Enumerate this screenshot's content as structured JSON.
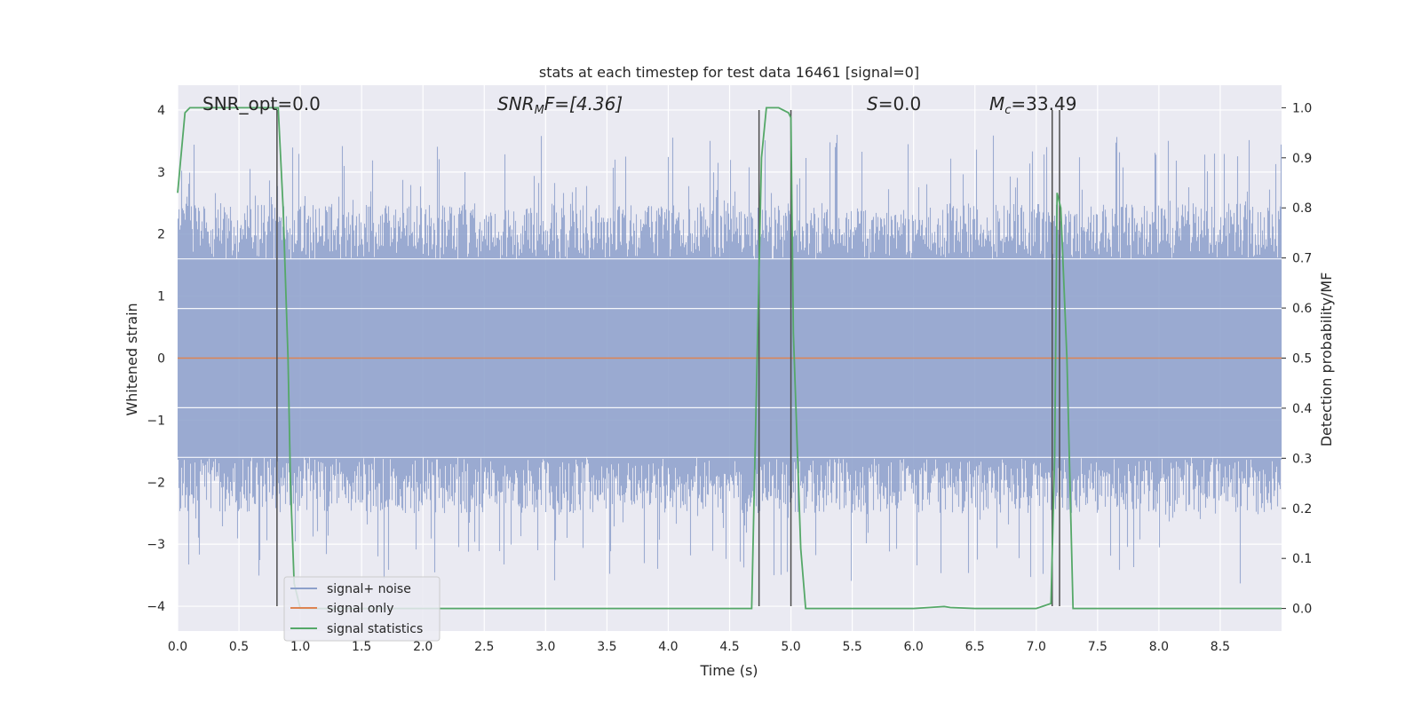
{
  "chart_data": {
    "type": "line",
    "title": "stats at each timestep for test data 16461 [signal=0]",
    "xlabel": "Time (s)",
    "ylabel": "Whitened strain",
    "ylabel_right": "Detection probability/MF",
    "xlim": [
      0.0,
      9.0
    ],
    "ylim": [
      -4.4,
      4.4
    ],
    "ylim_right": [
      -0.045,
      1.045
    ],
    "x_ticks": [
      "0.0",
      "0.5",
      "1.0",
      "1.5",
      "2.0",
      "2.5",
      "3.0",
      "3.5",
      "4.0",
      "4.5",
      "5.0",
      "5.5",
      "6.0",
      "6.5",
      "7.0",
      "7.5",
      "8.0",
      "8.5"
    ],
    "y_ticks": [
      "−4",
      "−3",
      "−2",
      "−1",
      "0",
      "1",
      "2",
      "3",
      "4"
    ],
    "y_ticks_right": [
      "0.0",
      "0.1",
      "0.2",
      "0.3",
      "0.4",
      "0.5",
      "0.6",
      "0.7",
      "0.8",
      "0.9",
      "1.0"
    ],
    "grid": true,
    "legend_position": "lower-left",
    "annotations": {
      "snr_opt": "SNR_opt=0.0",
      "snr_mf_main": "SNR",
      "snr_mf_sub": "M",
      "snr_mf_rest": "F=[4.36]",
      "s_main": "S",
      "s_rest": "=0.0",
      "mc_main": "M",
      "mc_sub": "c",
      "mc_rest": "=33.49"
    },
    "series": [
      {
        "name": "signal+ noise",
        "color": "#8da0cb",
        "description_stats": {
          "core_band": [
            -1.6,
            1.6
          ],
          "peaks_max": 3.6,
          "peaks_min": -4.0
        }
      },
      {
        "name": "signal only",
        "color": "#dd8452",
        "x": [
          0.0,
          9.0
        ],
        "y": [
          0.0,
          0.0
        ]
      },
      {
        "name": "signal statistics",
        "color": "#55a868",
        "axis": "right",
        "x": [
          0.0,
          0.06,
          0.1,
          0.2,
          0.3,
          0.4,
          0.5,
          0.6,
          0.7,
          0.8,
          0.82,
          0.86,
          0.9,
          0.92,
          0.95,
          1.0,
          2.0,
          3.0,
          4.0,
          4.3,
          4.5,
          4.68,
          4.72,
          4.76,
          4.8,
          4.82,
          4.9,
          4.98,
          5.0,
          5.02,
          5.08,
          5.12,
          5.2,
          5.5,
          6.0,
          6.25,
          6.3,
          6.5,
          7.0,
          7.12,
          7.15,
          7.17,
          7.2,
          7.25,
          7.3,
          7.5,
          8.0,
          8.5,
          9.0
        ],
        "y": [
          0.83,
          0.99,
          1.0,
          1.0,
          1.0,
          1.0,
          1.0,
          1.0,
          1.0,
          1.0,
          1.0,
          0.8,
          0.5,
          0.25,
          0.05,
          0.0,
          0.0,
          0.0,
          0.0,
          0.0,
          0.0,
          0.0,
          0.45,
          0.9,
          1.0,
          1.0,
          1.0,
          0.99,
          0.98,
          0.55,
          0.12,
          0.0,
          0.0,
          0.0,
          0.0,
          0.004,
          0.002,
          0.0,
          0.0,
          0.01,
          0.3,
          0.83,
          0.8,
          0.5,
          0.0,
          0.0,
          0.0,
          0.0,
          0.0
        ]
      }
    ],
    "vlines_x": [
      0.81,
      4.74,
      5.0,
      7.13,
      7.19
    ]
  }
}
